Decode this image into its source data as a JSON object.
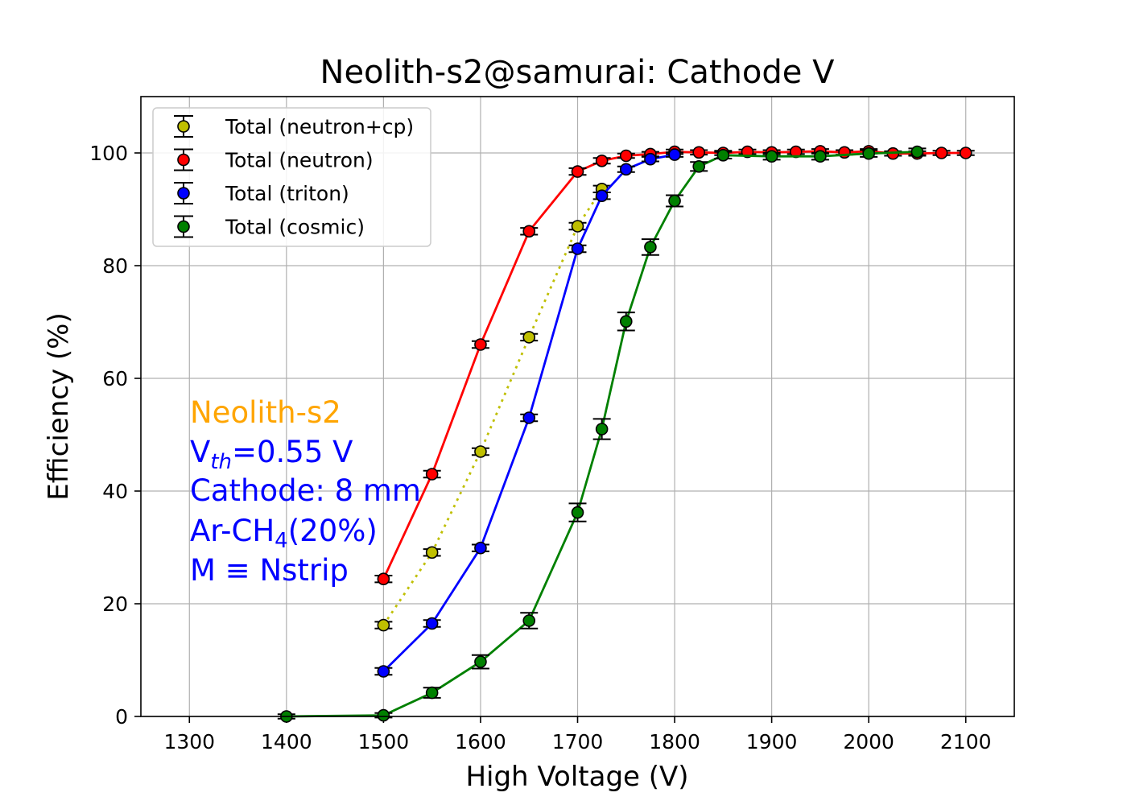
{
  "chart_data": {
    "type": "scatter",
    "title": "Neolith-s2@samurai: Cathode V",
    "xlabel": "High Voltage (V)",
    "ylabel": "Efficiency (%)",
    "xlim": [
      1250,
      2150
    ],
    "ylim": [
      0,
      110
    ],
    "xticks": [
      1300,
      1400,
      1500,
      1600,
      1700,
      1800,
      1900,
      2000,
      2100
    ],
    "yticks": [
      0,
      20,
      40,
      60,
      80,
      100
    ],
    "grid": true,
    "legend_position": "top-left",
    "series": [
      {
        "name": "Total (neutron+cp)",
        "color": "#bfbf00",
        "line_style": "dotted",
        "x": [
          1500,
          1550,
          1600,
          1650,
          1700,
          1725
        ],
        "y": [
          16.2,
          29.1,
          47.0,
          67.3,
          87.0,
          93.6
        ],
        "yerr": [
          0.6,
          0.6,
          0.6,
          0.6,
          0.6,
          0.6
        ]
      },
      {
        "name": "Total (neutron)",
        "color": "#ff0000",
        "line_style": "solid",
        "x": [
          1500,
          1550,
          1600,
          1650,
          1700,
          1725,
          1750,
          1775,
          1800,
          1825,
          1850,
          1875,
          1900,
          1925,
          1950,
          1975,
          2000,
          2025,
          2050,
          2075,
          2100
        ],
        "y": [
          24.4,
          43.0,
          66.0,
          86.1,
          96.7,
          98.6,
          99.5,
          99.8,
          100.2,
          100.1,
          100.0,
          100.2,
          100.1,
          100.2,
          100.3,
          100.1,
          100.3,
          99.9,
          99.9,
          100.0,
          100.0
        ],
        "yerr": [
          0.6,
          0.6,
          0.6,
          0.6,
          0.6,
          0.5,
          0.4,
          0.4,
          0.4,
          0.4,
          0.4,
          0.4,
          0.4,
          0.4,
          0.4,
          0.4,
          0.4,
          0.4,
          0.4,
          0.4,
          0.4
        ]
      },
      {
        "name": "Total (triton)",
        "color": "#0000ff",
        "line_style": "solid",
        "x": [
          1500,
          1550,
          1600,
          1650,
          1700,
          1725,
          1750,
          1775,
          1800
        ],
        "y": [
          8.0,
          16.5,
          29.9,
          53.0,
          83.0,
          92.4,
          97.1,
          98.9,
          99.7
        ],
        "yerr": [
          0.6,
          0.6,
          0.6,
          0.6,
          0.6,
          0.6,
          0.5,
          0.4,
          0.4
        ]
      },
      {
        "name": "Total (cosmic)",
        "color": "#008000",
        "line_style": "solid",
        "x": [
          1400,
          1500,
          1550,
          1600,
          1650,
          1700,
          1725,
          1750,
          1775,
          1800,
          1825,
          1850,
          1900,
          1950,
          2000,
          2050
        ],
        "y": [
          0.0,
          0.2,
          4.2,
          9.7,
          17.0,
          36.2,
          51.0,
          70.1,
          83.3,
          91.5,
          97.6,
          99.6,
          99.4,
          99.4,
          99.9,
          100.2
        ],
        "yerr": [
          0.4,
          0.4,
          0.9,
          1.2,
          1.4,
          1.6,
          1.8,
          1.6,
          1.4,
          1.0,
          0.8,
          0.6,
          0.6,
          0.6,
          0.6,
          0.6
        ]
      }
    ],
    "annotations": {
      "detector": {
        "text": "Neolith-s2",
        "color": "#ffa500"
      },
      "vth_prefix": "V",
      "vth_sub": "th",
      "vth_value": "=0.55 V",
      "cathode": "Cathode: 8 mm",
      "gas_prefix": "Ar-CH",
      "gas_sub": "4",
      "gas_suffix": "(20%)",
      "multiplicity": "M ≡ Nstrip",
      "color": "#0000ff"
    }
  }
}
